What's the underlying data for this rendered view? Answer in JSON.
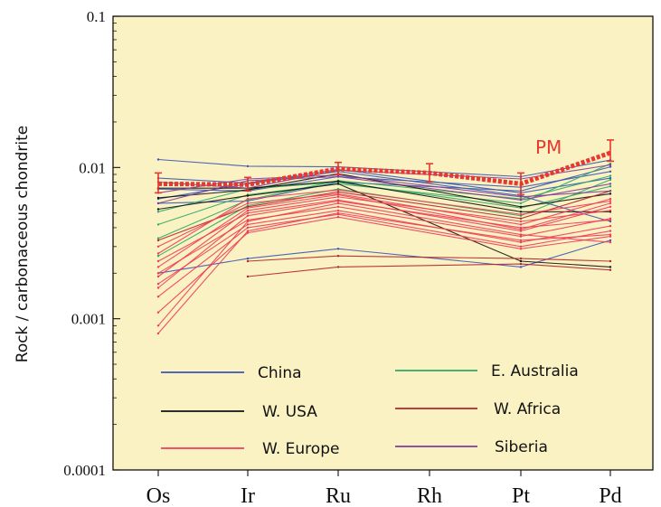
{
  "chart_data": {
    "type": "line",
    "title": "",
    "xlabel": "",
    "ylabel": "Rock / carbonaceous chondrite",
    "y_scale": "log",
    "ylim": [
      0.0001,
      0.1
    ],
    "grid": false,
    "background_color": "#fbf2c3",
    "categories": [
      "Os",
      "Ir",
      "Ru",
      "Rh",
      "Pt",
      "Pd"
    ],
    "y_ticks": [
      {
        "value": 0.0001,
        "label": "0.0001"
      },
      {
        "value": 0.001,
        "label": "0.001"
      },
      {
        "value": 0.01,
        "label": "0.01"
      },
      {
        "value": 0.1,
        "label": "0.1"
      }
    ],
    "legend": {
      "placement": "bottom",
      "entries": [
        {
          "name": "China",
          "color": "#3a55b4"
        },
        {
          "name": "E. Australia",
          "color": "#2ba866"
        },
        {
          "name": "W. USA",
          "color": "#111111"
        },
        {
          "name": "W. Africa",
          "color": "#b3242a"
        },
        {
          "name": "W. Europe",
          "color": "#ee3b5b"
        },
        {
          "name": "Siberia",
          "color": "#7f3c99"
        }
      ]
    },
    "reference": {
      "name": "PM",
      "color": "#e8372f",
      "values": [
        0.0078,
        0.0077,
        0.0098,
        0.0092,
        0.0078,
        0.0125
      ],
      "error_high": [
        0.0092,
        0.0086,
        0.0108,
        0.0106,
        0.0092,
        0.0152
      ],
      "error_low": [
        0.0068,
        0.007,
        0.009,
        0.008,
        0.0066,
        0.011
      ]
    },
    "series": [
      {
        "group": "China",
        "color": "#3a55b4",
        "values": [
          0.0113,
          0.0102,
          0.0101,
          null,
          0.0087,
          0.0112
        ]
      },
      {
        "group": "China",
        "color": "#3a55b4",
        "values": [
          0.0062,
          0.0078,
          0.0094,
          null,
          0.0065,
          0.0044
        ]
      },
      {
        "group": "China",
        "color": "#3a55b4",
        "values": [
          0.002,
          0.0025,
          0.0029,
          null,
          0.0022,
          0.0033
        ]
      },
      {
        "group": "China",
        "color": "#3a55b4",
        "values": [
          0.0072,
          0.007,
          0.0087,
          null,
          0.0074,
          0.0094
        ]
      },
      {
        "group": "China",
        "color": "#3a55b4",
        "values": [
          0.0058,
          0.006,
          0.008,
          null,
          0.007,
          0.0101
        ]
      },
      {
        "group": "China",
        "color": "#3a55b4",
        "values": [
          0.0085,
          0.0079,
          0.0097,
          null,
          0.0068,
          0.0085
        ]
      },
      {
        "group": "E. Australia",
        "color": "#2ba866",
        "values": [
          0.0042,
          0.0066,
          0.0078,
          null,
          0.0058,
          0.0106
        ]
      },
      {
        "group": "E. Australia",
        "color": "#2ba866",
        "values": [
          0.0026,
          0.0056,
          0.0072,
          null,
          0.0048,
          0.0083
        ]
      },
      {
        "group": "E. Australia",
        "color": "#2ba866",
        "values": [
          0.0034,
          0.0061,
          0.0082,
          null,
          0.0062,
          0.0088
        ]
      },
      {
        "group": "E. Australia",
        "color": "#2ba866",
        "values": [
          0.0051,
          0.0072,
          0.008,
          null,
          0.0054,
          0.0075
        ]
      },
      {
        "group": "W. USA",
        "color": "#111111",
        "values": [
          0.0053,
          0.0065,
          0.0078,
          null,
          0.0024,
          0.0022
        ]
      },
      {
        "group": "W. USA",
        "color": "#111111",
        "values": [
          0.0063,
          0.0071,
          0.0091,
          null,
          0.0055,
          0.0067
        ]
      },
      {
        "group": "W. USA",
        "color": "#111111",
        "values": [
          0.0073,
          0.0073,
          0.0081,
          null,
          0.0051,
          0.0051
        ]
      },
      {
        "group": "W. Africa",
        "color": "#b3242a",
        "values": [
          null,
          0.0019,
          0.0022,
          null,
          0.0023,
          0.0021
        ]
      },
      {
        "group": "W. Africa",
        "color": "#b3242a",
        "values": [
          null,
          0.0024,
          0.0026,
          null,
          0.0025,
          0.0024
        ]
      },
      {
        "group": "W. Africa",
        "color": "#b3242a",
        "values": [
          0.0033,
          0.0055,
          0.0069,
          null,
          0.0046,
          0.007
        ]
      },
      {
        "group": "W. Europe",
        "color": "#ee3b5b",
        "values": [
          0.003,
          0.0058,
          0.0067,
          null,
          0.0042,
          0.0062
        ]
      },
      {
        "group": "W. Europe",
        "color": "#ee3b5b",
        "values": [
          0.0024,
          0.005,
          0.0061,
          null,
          0.0038,
          0.0055
        ]
      },
      {
        "group": "W. Europe",
        "color": "#ee3b5b",
        "values": [
          0.002,
          0.0045,
          0.0055,
          null,
          0.0035,
          0.0046
        ]
      },
      {
        "group": "W. Europe",
        "color": "#ee3b5b",
        "values": [
          0.0017,
          0.0042,
          0.0052,
          null,
          0.0032,
          0.0041
        ]
      },
      {
        "group": "W. Europe",
        "color": "#ee3b5b",
        "values": [
          0.0014,
          0.004,
          0.0049,
          null,
          0.003,
          0.0038
        ]
      },
      {
        "group": "W. Europe",
        "color": "#ee3b5b",
        "values": [
          0.0011,
          0.0037,
          0.0047,
          null,
          0.0029,
          0.0035
        ]
      },
      {
        "group": "W. Europe",
        "color": "#ee3b5b",
        "values": [
          0.0009,
          0.0044,
          0.0058,
          null,
          0.0036,
          0.0032
        ]
      },
      {
        "group": "W. Europe",
        "color": "#ee3b5b",
        "values": [
          0.0008,
          0.0038,
          0.005,
          null,
          0.0033,
          0.0036
        ]
      },
      {
        "group": "W. Europe",
        "color": "#ee3b5b",
        "values": [
          0.0019,
          0.0052,
          0.0064,
          null,
          0.0044,
          0.0052
        ]
      },
      {
        "group": "W. Europe",
        "color": "#ee3b5b",
        "values": [
          0.0027,
          0.0062,
          0.0071,
          null,
          0.0049,
          0.006
        ]
      },
      {
        "group": "W. Europe",
        "color": "#ee3b5b",
        "values": [
          0.0016,
          0.0048,
          0.006,
          null,
          0.004,
          0.0045
        ]
      },
      {
        "group": "W. Europe",
        "color": "#ee3b5b",
        "values": [
          0.0022,
          0.0054,
          0.0066,
          null,
          0.0039,
          0.0058
        ]
      },
      {
        "group": "Siberia",
        "color": "#7f3c99",
        "values": [
          0.008,
          0.0073,
          0.0096,
          null,
          0.0084,
          0.0104
        ]
      },
      {
        "group": "Siberia",
        "color": "#7f3c99",
        "values": [
          0.0068,
          0.0084,
          0.0089,
          null,
          0.0064,
          0.007
        ]
      },
      {
        "group": "Siberia",
        "color": "#7f3c99",
        "values": [
          0.0058,
          0.0082,
          0.0087,
          null,
          0.0061,
          0.0078
        ]
      }
    ]
  }
}
